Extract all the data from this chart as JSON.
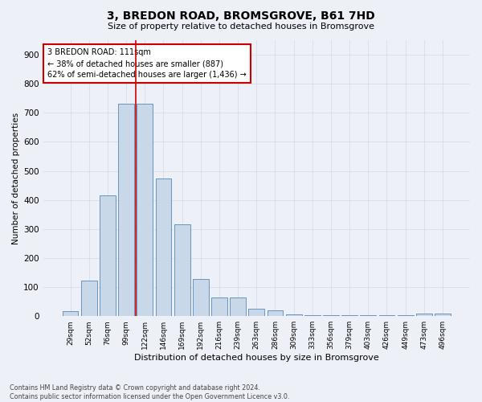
{
  "title": "3, BREDON ROAD, BROMSGROVE, B61 7HD",
  "subtitle": "Size of property relative to detached houses in Bromsgrove",
  "xlabel": "Distribution of detached houses by size in Bromsgrove",
  "ylabel": "Number of detached properties",
  "categories": [
    "29sqm",
    "52sqm",
    "76sqm",
    "99sqm",
    "122sqm",
    "146sqm",
    "169sqm",
    "192sqm",
    "216sqm",
    "239sqm",
    "263sqm",
    "286sqm",
    "309sqm",
    "333sqm",
    "356sqm",
    "379sqm",
    "403sqm",
    "426sqm",
    "449sqm",
    "473sqm",
    "496sqm"
  ],
  "values": [
    18,
    122,
    415,
    730,
    730,
    475,
    315,
    128,
    63,
    63,
    25,
    20,
    7,
    3,
    2,
    2,
    2,
    2,
    2,
    10,
    10
  ],
  "bar_color": "#c8d8e8",
  "bar_edge_color": "#5588bb",
  "vline_index": 3.5,
  "vline_color": "#cc0000",
  "annotation_text": "3 BREDON ROAD: 111sqm\n← 38% of detached houses are smaller (887)\n62% of semi-detached houses are larger (1,436) →",
  "annotation_box_color": "#ffffff",
  "annotation_box_edge": "#cc0000",
  "ylim": [
    0,
    950
  ],
  "yticks": [
    0,
    100,
    200,
    300,
    400,
    500,
    600,
    700,
    800,
    900
  ],
  "grid_color": "#d8dce8",
  "background_color": "#eef0f8",
  "footer_line1": "Contains HM Land Registry data © Crown copyright and database right 2024.",
  "footer_line2": "Contains public sector information licensed under the Open Government Licence v3.0."
}
